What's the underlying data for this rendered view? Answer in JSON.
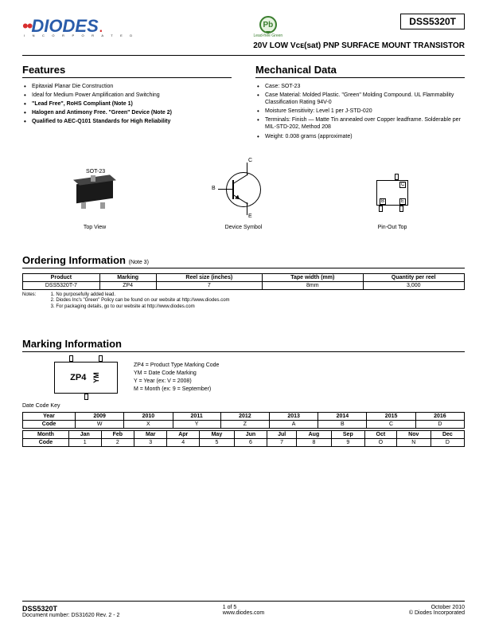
{
  "header": {
    "logo_text": "DIODES",
    "logo_subtitle": "I N C O R P O R A T E D",
    "lead_free_text": "Lead-free Green",
    "pb_text": "Pb",
    "part_number": "DSS5320T",
    "subtitle": "20V LOW Vᴄᴇ(sat) PNP SURFACE MOUNT TRANSISTOR"
  },
  "features": {
    "title": "Features",
    "items": [
      {
        "text": "Epitaxial Planar Die Construction",
        "bold": false
      },
      {
        "text": "Ideal for Medium Power Amplification and Switching",
        "bold": false
      },
      {
        "text": "\"Lead Free\", RoHS Compliant (Note 1)",
        "bold": true
      },
      {
        "text": "Halogen and Antimony Free. \"Green\" Device (Note 2)",
        "bold": true
      },
      {
        "text": "Qualified to AEC-Q101 Standards for High Reliability",
        "bold": true
      }
    ]
  },
  "mechanical": {
    "title": "Mechanical Data",
    "items": [
      {
        "text": "Case: SOT-23"
      },
      {
        "text": "Case Material: Molded Plastic. \"Green\" Molding Compound. UL Flammability Classification Rating 94V-0"
      },
      {
        "text": "Moisture Sensitivity: Level 1 per J-STD-020"
      },
      {
        "text": "Terminals: Finish — Matte Tin annealed over Copper leadframe. Solderable per MIL-STD-202, Method 208"
      },
      {
        "text": "Weight: 0.008 grams (approximate)"
      }
    ]
  },
  "diagrams": {
    "sot_label": "SOT-23",
    "topview": "Top View",
    "symbol": "Device Symbol",
    "pinout": "Pin-Out Top",
    "pins": {
      "c": "C",
      "b": "B",
      "e": "E"
    }
  },
  "ordering": {
    "title": "Ordering Information",
    "note_inline": "(Note 3)",
    "columns": [
      "Product",
      "Marking",
      "Reel size (inches)",
      "Tape width (mm)",
      "Quantity per reel"
    ],
    "rows": [
      [
        "DSS5320T-7",
        "ZP4",
        "7",
        "8mm",
        "3,000"
      ]
    ],
    "notes_label": "Notes:",
    "notes": [
      "1. No purposefully added lead.",
      "2. Diodes Inc's \"Green\" Policy can be found on our website at http://www.diodes.com",
      "3. For packaging details, go to our website at http://www.diodes.com"
    ]
  },
  "marking": {
    "title": "Marking Information",
    "chip_code": "ZP4",
    "chip_ym": "YM",
    "desc": [
      "ZP4 = Product Type Marking Code",
      "YM = Date Code Marking",
      "Y = Year (ex: V = 2008)",
      "M = Month (ex: 9 = September)"
    ],
    "datecode_label": "Date Code Key",
    "year_table": {
      "header": [
        "Year",
        "2009",
        "2010",
        "2011",
        "2012",
        "2013",
        "2014",
        "2015",
        "2016"
      ],
      "row": [
        "Code",
        "W",
        "X",
        "Y",
        "Z",
        "A",
        "B",
        "C",
        "D"
      ]
    },
    "month_table": {
      "header": [
        "Month",
        "Jan",
        "Feb",
        "Mar",
        "Apr",
        "May",
        "Jun",
        "Jul",
        "Aug",
        "Sep",
        "Oct",
        "Nov",
        "Dec"
      ],
      "row": [
        "Code",
        "1",
        "2",
        "3",
        "4",
        "5",
        "6",
        "7",
        "8",
        "9",
        "O",
        "N",
        "D"
      ]
    }
  },
  "footer": {
    "part": "DSS5320T",
    "doc": "Document number: DS31620 Rev. 2 - 2",
    "page": "1 of 5",
    "site": "www.diodes.com",
    "date": "October 2010",
    "copyright": "© Diodes Incorporated"
  },
  "colors": {
    "brand_blue": "#2a5caa",
    "brand_red": "#d82e2e",
    "green": "#3a7e2e",
    "black": "#000000"
  }
}
